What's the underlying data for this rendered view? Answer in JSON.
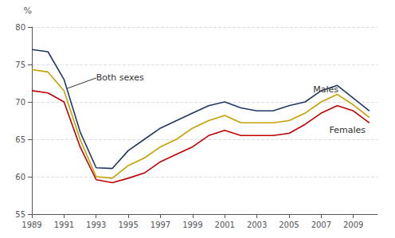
{
  "chart_data": {
    "type": "line",
    "x": [
      1989,
      1990,
      1991,
      1992,
      1993,
      1994,
      1995,
      1996,
      1997,
      1998,
      1999,
      2000,
      2001,
      2002,
      2003,
      2004,
      2005,
      2006,
      2007,
      2008,
      2009,
      2010
    ],
    "series": [
      {
        "name": "Males",
        "color": "#1F3864",
        "values": [
          77.0,
          76.7,
          73.0,
          66.0,
          61.2,
          61.1,
          63.5,
          65.0,
          66.5,
          67.5,
          68.5,
          69.5,
          70.0,
          69.2,
          68.8,
          68.8,
          69.5,
          70.0,
          71.5,
          72.2,
          70.5,
          68.8
        ]
      },
      {
        "name": "Females",
        "color": "#C00000",
        "values": [
          71.5,
          71.2,
          70.0,
          64.0,
          59.6,
          59.2,
          59.8,
          60.5,
          62.0,
          63.0,
          64.0,
          65.5,
          66.2,
          65.5,
          65.5,
          65.5,
          65.8,
          67.0,
          68.5,
          69.5,
          68.8,
          67.2
        ]
      },
      {
        "name": "Both sexes",
        "color": "#C8A000",
        "values": [
          74.3,
          74.0,
          71.5,
          65.0,
          60.0,
          59.8,
          61.5,
          62.5,
          64.0,
          65.0,
          66.5,
          67.5,
          68.2,
          67.2,
          67.2,
          67.2,
          67.5,
          68.5,
          70.0,
          71.0,
          69.6,
          67.9
        ]
      }
    ],
    "ylabel": "%",
    "xlim": [
      1989,
      2010.5
    ],
    "xticks": [
      1989,
      1991,
      1993,
      1995,
      1997,
      1999,
      2001,
      2003,
      2005,
      2007,
      2009
    ],
    "ylim": [
      55,
      80
    ],
    "yticks": [
      55,
      60,
      65,
      70,
      75,
      80
    ],
    "grid": true,
    "annotations": [
      {
        "text": "Both sexes",
        "x": 1993.0,
        "y": 73.2,
        "arrow_to": [
          1991.2,
          71.8
        ]
      },
      {
        "text": "Males",
        "x": 2006.5,
        "y": 71.6
      },
      {
        "text": "Females",
        "x": 2007.5,
        "y": 66.2
      }
    ]
  }
}
